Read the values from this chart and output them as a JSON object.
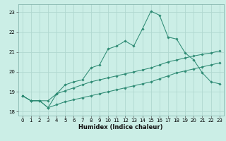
{
  "xlabel": "Humidex (Indice chaleur)",
  "x_values": [
    0,
    1,
    2,
    3,
    4,
    5,
    6,
    7,
    8,
    9,
    10,
    11,
    12,
    13,
    14,
    15,
    16,
    17,
    18,
    19,
    20,
    21,
    22,
    23
  ],
  "line_bottom": [
    18.8,
    18.55,
    18.55,
    18.2,
    18.35,
    18.5,
    18.6,
    18.7,
    18.8,
    18.9,
    19.0,
    19.1,
    19.2,
    19.3,
    19.4,
    19.5,
    19.65,
    19.8,
    19.95,
    20.05,
    20.15,
    20.25,
    20.35,
    20.45
  ],
  "line_mid": [
    18.8,
    18.55,
    18.55,
    18.55,
    18.9,
    19.05,
    19.2,
    19.35,
    19.5,
    19.6,
    19.7,
    19.8,
    19.9,
    20.0,
    20.1,
    20.2,
    20.35,
    20.5,
    20.6,
    20.7,
    20.8,
    20.88,
    20.95,
    21.05
  ],
  "line_top": [
    18.8,
    18.55,
    18.55,
    18.2,
    18.9,
    19.35,
    19.5,
    19.6,
    20.2,
    20.35,
    21.15,
    21.3,
    21.55,
    21.3,
    22.15,
    23.05,
    22.85,
    21.75,
    21.65,
    20.95,
    20.6,
    19.95,
    19.5,
    19.4
  ],
  "line_color": "#2e8b74",
  "bg_color": "#cbeee6",
  "grid_color": "#b0d8d0",
  "ylim": [
    17.8,
    23.4
  ],
  "yticks": [
    18,
    19,
    20,
    21,
    22,
    23
  ],
  "xticks": [
    0,
    1,
    2,
    3,
    4,
    5,
    6,
    7,
    8,
    9,
    10,
    11,
    12,
    13,
    14,
    15,
    16,
    17,
    18,
    19,
    20,
    21,
    22,
    23
  ],
  "xlabel_fontsize": 6.0,
  "tick_fontsize": 5.0
}
